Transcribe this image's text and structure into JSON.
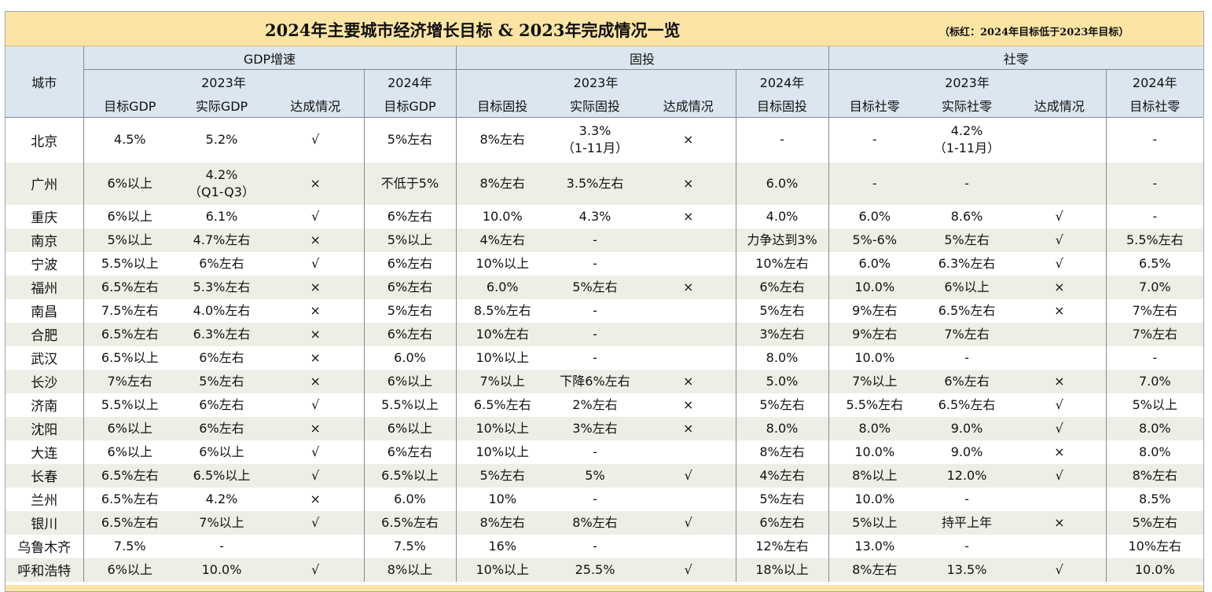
{
  "title": "2024年主要城市经济增长目标 & 2023年完成情况一览",
  "note": "（标红：2024年目标低于2023年目标）",
  "header": {
    "city": "城市",
    "groups": [
      "GDP增速",
      "固投",
      "社零"
    ],
    "year2023": "2023年",
    "year2024": "2024年",
    "gdp_cols": [
      "目标GDP",
      "实际GDP",
      "达成情况",
      "目标GDP"
    ],
    "fi_cols": [
      "目标固投",
      "实际固投",
      "达成情况",
      "目标固投"
    ],
    "rs_cols": [
      "目标社零",
      "实际社零",
      "达成情况",
      "目标社零"
    ]
  },
  "rows": [
    {
      "city": "北京",
      "cells": [
        [
          "4.5%"
        ],
        [
          "5.2%"
        ],
        [
          "√"
        ],
        [
          "5%左右"
        ],
        [
          "8%左右"
        ],
        [
          "3.3%",
          "（1-11月）"
        ],
        [
          "×"
        ],
        [
          "-"
        ],
        [
          "-"
        ],
        [
          "4.2%",
          "（1-11月）"
        ],
        [
          ""
        ],
        [
          "-"
        ]
      ],
      "red": []
    },
    {
      "city": "广州",
      "cells": [
        [
          "6%以上"
        ],
        [
          "4.2%",
          "（Q1-Q3）"
        ],
        [
          "×"
        ],
        [
          "不低于5%"
        ],
        [
          "8%左右"
        ],
        [
          "3.5%左右"
        ],
        [
          "×"
        ],
        [
          "6.0%"
        ],
        [
          "-"
        ],
        [
          "-"
        ],
        [
          ""
        ],
        [
          "-"
        ]
      ],
      "red": [
        3,
        7
      ]
    },
    {
      "city": "重庆",
      "cells": [
        [
          "6%以上"
        ],
        [
          "6.1%"
        ],
        [
          "√"
        ],
        [
          "6%左右"
        ],
        [
          "10.0%"
        ],
        [
          "4.3%"
        ],
        [
          "×"
        ],
        [
          "4.0%"
        ],
        [
          "6.0%"
        ],
        [
          "8.6%"
        ],
        [
          "√"
        ],
        [
          "-"
        ]
      ],
      "red": [
        3,
        7
      ]
    },
    {
      "city": "南京",
      "cells": [
        [
          "5%以上"
        ],
        [
          "4.7%左右"
        ],
        [
          "×"
        ],
        [
          "5%以上"
        ],
        [
          "4%左右"
        ],
        [
          "-"
        ],
        [
          ""
        ],
        [
          "力争达到3%"
        ],
        [
          "5%-6%"
        ],
        [
          "5%左右"
        ],
        [
          "√"
        ],
        [
          "5.5%左右"
        ]
      ],
      "red": [
        7
      ]
    },
    {
      "city": "宁波",
      "cells": [
        [
          "5.5%以上"
        ],
        [
          "6%左右"
        ],
        [
          "√"
        ],
        [
          "6%左右"
        ],
        [
          "10%以上"
        ],
        [
          "-"
        ],
        [
          ""
        ],
        [
          "10%左右"
        ],
        [
          "6.0%"
        ],
        [
          "6.3%左右"
        ],
        [
          "√"
        ],
        [
          "6.5%"
        ]
      ],
      "red": []
    },
    {
      "city": "福州",
      "cells": [
        [
          "6.5%左右"
        ],
        [
          "5.3%左右"
        ],
        [
          "×"
        ],
        [
          "6%左右"
        ],
        [
          "6.0%"
        ],
        [
          "5%左右"
        ],
        [
          "×"
        ],
        [
          "6%左右"
        ],
        [
          "10.0%"
        ],
        [
          "6%以上"
        ],
        [
          "×"
        ],
        [
          "7.0%"
        ]
      ],
      "red": [
        3,
        11
      ]
    },
    {
      "city": "南昌",
      "cells": [
        [
          "7.5%左右"
        ],
        [
          "4.0%左右"
        ],
        [
          "×"
        ],
        [
          "5%左右"
        ],
        [
          "8.5%左右"
        ],
        [
          "-"
        ],
        [
          ""
        ],
        [
          "5%左右"
        ],
        [
          "9%左右"
        ],
        [
          "6.5%左右"
        ],
        [
          "×"
        ],
        [
          "7%左右"
        ]
      ],
      "red": [
        3,
        7,
        11
      ]
    },
    {
      "city": "合肥",
      "cells": [
        [
          "6.5%左右"
        ],
        [
          "6.3%左右"
        ],
        [
          "×"
        ],
        [
          "6%左右"
        ],
        [
          "10%左右"
        ],
        [
          "-"
        ],
        [
          ""
        ],
        [
          "3%左右"
        ],
        [
          "9%左右"
        ],
        [
          "7%左右"
        ],
        [
          ""
        ],
        [
          "7%左右"
        ]
      ],
      "red": [
        3,
        7,
        11
      ]
    },
    {
      "city": "武汉",
      "cells": [
        [
          "6.5%以上"
        ],
        [
          "6%左右"
        ],
        [
          "×"
        ],
        [
          "6.0%"
        ],
        [
          "10%以上"
        ],
        [
          "-"
        ],
        [
          ""
        ],
        [
          "8.0%"
        ],
        [
          "10.0%"
        ],
        [
          "-"
        ],
        [
          ""
        ],
        [
          "-"
        ]
      ],
      "red": [
        3,
        7
      ]
    },
    {
      "city": "长沙",
      "cells": [
        [
          "7%左右"
        ],
        [
          "5%左右"
        ],
        [
          "×"
        ],
        [
          "6%以上"
        ],
        [
          "7%以上"
        ],
        [
          "下降6%左右"
        ],
        [
          "×"
        ],
        [
          "5.0%"
        ],
        [
          "7%以上"
        ],
        [
          "6%左右"
        ],
        [
          "×"
        ],
        [
          "7.0%"
        ]
      ],
      "red": [
        3,
        7
      ]
    },
    {
      "city": "济南",
      "cells": [
        [
          "5.5%以上"
        ],
        [
          "6%左右"
        ],
        [
          "√"
        ],
        [
          "5.5%以上"
        ],
        [
          "6.5%左右"
        ],
        [
          "2%左右"
        ],
        [
          "×"
        ],
        [
          "5%左右"
        ],
        [
          "5.5%左右"
        ],
        [
          "6.5%左右"
        ],
        [
          "√"
        ],
        [
          "5%以上"
        ]
      ],
      "red": [
        7
      ]
    },
    {
      "city": "沈阳",
      "cells": [
        [
          "6%以上"
        ],
        [
          "6%左右"
        ],
        [
          "×"
        ],
        [
          "6%以上"
        ],
        [
          "10%以上"
        ],
        [
          "3%左右"
        ],
        [
          "×"
        ],
        [
          "8.0%"
        ],
        [
          "8.0%"
        ],
        [
          "9.0%"
        ],
        [
          "√"
        ],
        [
          "8.0%"
        ]
      ],
      "red": [
        7
      ]
    },
    {
      "city": "大连",
      "cells": [
        [
          "6%以上"
        ],
        [
          "6%以上"
        ],
        [
          "√"
        ],
        [
          "6%左右"
        ],
        [
          "10%以上"
        ],
        [
          "-"
        ],
        [
          ""
        ],
        [
          "8%左右"
        ],
        [
          "10.0%"
        ],
        [
          "9.0%"
        ],
        [
          "×"
        ],
        [
          "8.0%"
        ]
      ],
      "red": [
        7,
        11
      ]
    },
    {
      "city": "长春",
      "cells": [
        [
          "6.5%左右"
        ],
        [
          "6.5%以上"
        ],
        [
          "√"
        ],
        [
          "6.5%以上"
        ],
        [
          "5%左右"
        ],
        [
          "5%"
        ],
        [
          "√"
        ],
        [
          "4%左右"
        ],
        [
          "8%以上"
        ],
        [
          "12.0%"
        ],
        [
          "√"
        ],
        [
          "8%左右"
        ]
      ],
      "red": [
        7
      ]
    },
    {
      "city": "兰州",
      "cells": [
        [
          "6.5%左右"
        ],
        [
          "4.2%"
        ],
        [
          "×"
        ],
        [
          "6.0%"
        ],
        [
          "10%"
        ],
        [
          "-"
        ],
        [
          ""
        ],
        [
          "5%左右"
        ],
        [
          "10.0%"
        ],
        [
          "-"
        ],
        [
          ""
        ],
        [
          "8.5%"
        ]
      ],
      "red": [
        3,
        7,
        11
      ]
    },
    {
      "city": "银川",
      "cells": [
        [
          "6.5%左右"
        ],
        [
          "7%以上"
        ],
        [
          "√"
        ],
        [
          "6.5%左右"
        ],
        [
          "8%左右"
        ],
        [
          "8%左右"
        ],
        [
          "√"
        ],
        [
          "6%左右"
        ],
        [
          "5%以上"
        ],
        [
          "持平上年"
        ],
        [
          "×"
        ],
        [
          "5%左右"
        ]
      ],
      "red": [
        7
      ]
    },
    {
      "city": "乌鲁木齐",
      "cells": [
        [
          "7.5%"
        ],
        [
          "-"
        ],
        [
          ""
        ],
        [
          "7.5%"
        ],
        [
          "16%"
        ],
        [
          "-"
        ],
        [
          ""
        ],
        [
          "12%左右"
        ],
        [
          "13.0%"
        ],
        [
          "-"
        ],
        [
          ""
        ],
        [
          "10%左右"
        ]
      ],
      "red": [
        7,
        11
      ]
    },
    {
      "city": "呼和浩特",
      "cells": [
        [
          "6%以上"
        ],
        [
          "10.0%"
        ],
        [
          "√"
        ],
        [
          "8%以上"
        ],
        [
          "10%以上"
        ],
        [
          "25.5%"
        ],
        [
          "√"
        ],
        [
          "18%以上"
        ],
        [
          "8%左右"
        ],
        [
          "13.5%"
        ],
        [
          "√"
        ],
        [
          "10.0%"
        ]
      ],
      "red": []
    }
  ]
}
